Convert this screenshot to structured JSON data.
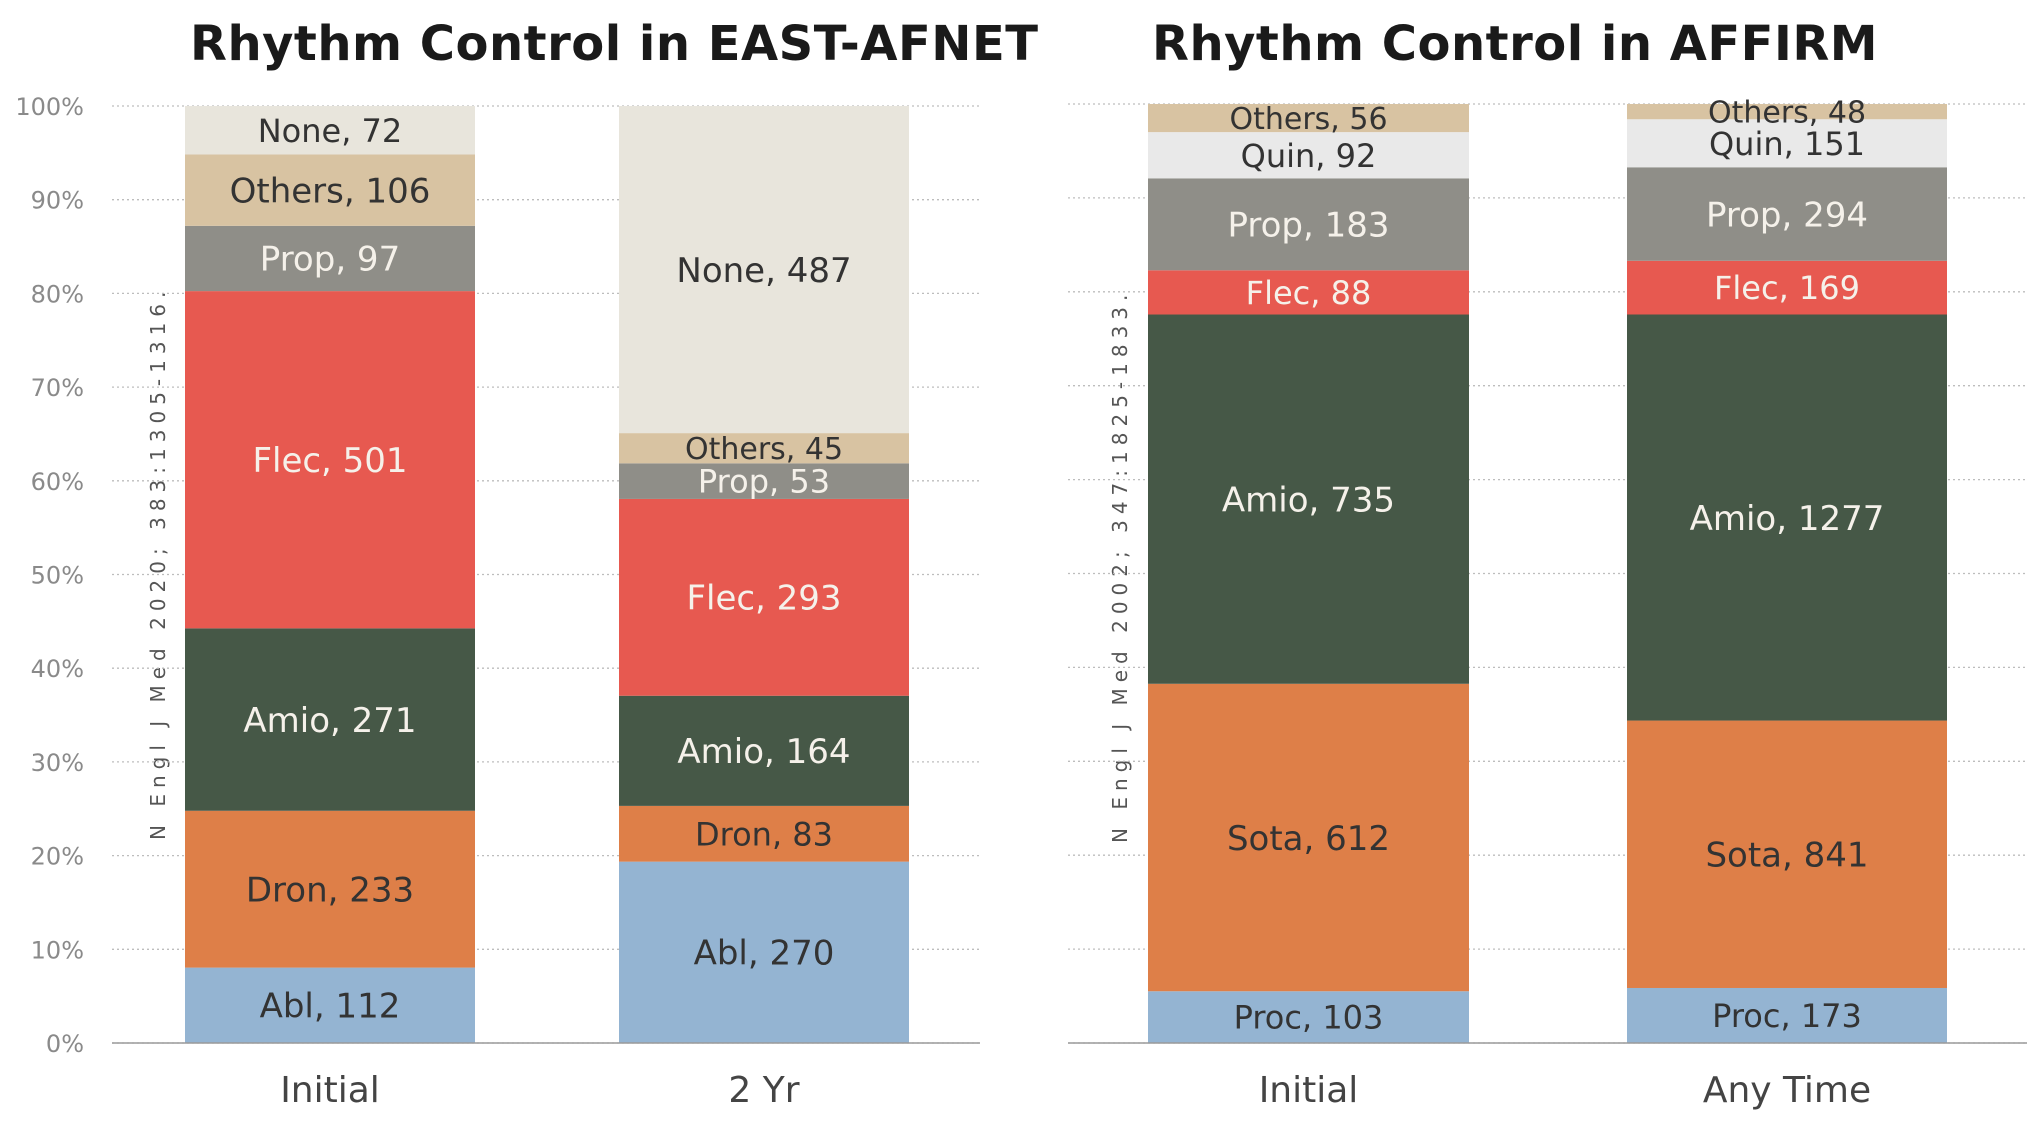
{
  "colors": {
    "Abl": "#94b4d2",
    "Proc": "#94b4d2",
    "Dron": "#de7f48",
    "Sota": "#de7f48",
    "Amio": "#465847",
    "Flec": "#e75950",
    "Prop": "#8f8e88",
    "Quin": "#e9e9e9",
    "Others": "#d8c3a2",
    "None": "#e8e5dc",
    "grid": "#bdbdbd",
    "axis": "#9a9a9a",
    "text_dark": "#333333",
    "text_light": "#f5f1ea"
  },
  "chart_data": [
    {
      "type": "bar",
      "stacked": true,
      "normalized": true,
      "title": "Rhythm Control in EAST-AFNET",
      "citation": "N Engl J Med 2020; 383:1305-1316.",
      "categories": [
        "Initial",
        "2 Yr"
      ],
      "yticks": [
        "0%",
        "10%",
        "20%",
        "30%",
        "40%",
        "50%",
        "60%",
        "70%",
        "80%",
        "90%",
        "100%"
      ],
      "ylim": [
        0,
        100
      ],
      "grid": true,
      "series": [
        {
          "name": "Abl",
          "values": [
            112,
            270
          ]
        },
        {
          "name": "Dron",
          "values": [
            233,
            83
          ]
        },
        {
          "name": "Amio",
          "values": [
            271,
            164
          ]
        },
        {
          "name": "Flec",
          "values": [
            501,
            293
          ]
        },
        {
          "name": "Prop",
          "values": [
            97,
            53
          ]
        },
        {
          "name": "Others",
          "values": [
            106,
            45
          ]
        },
        {
          "name": "None",
          "values": [
            72,
            487
          ]
        }
      ],
      "labels": [
        [
          "Abl, 112",
          "Abl, 270"
        ],
        [
          "Dron, 233",
          "Dron, 83"
        ],
        [
          "Amio, 271",
          "Amio, 164"
        ],
        [
          "Flec, 501",
          "Flec, 293"
        ],
        [
          "Prop, 97",
          "Prop, 53"
        ],
        [
          "Others, 106",
          "Others, 45"
        ],
        [
          "None, 72",
          "None, 487"
        ]
      ]
    },
    {
      "type": "bar",
      "stacked": true,
      "normalized": true,
      "title": "Rhythm Control in AFFIRM",
      "citation": "N Engl J Med 2002; 347:1825-1833.",
      "categories": [
        "Initial",
        "Any Time"
      ],
      "ylim": [
        0,
        100
      ],
      "grid": true,
      "series": [
        {
          "name": "Proc",
          "values": [
            103,
            173
          ]
        },
        {
          "name": "Sota",
          "values": [
            612,
            841
          ]
        },
        {
          "name": "Amio",
          "values": [
            735,
            1277
          ]
        },
        {
          "name": "Flec",
          "values": [
            88,
            169
          ]
        },
        {
          "name": "Prop",
          "values": [
            183,
            294
          ]
        },
        {
          "name": "Quin",
          "values": [
            92,
            151
          ]
        },
        {
          "name": "Others",
          "values": [
            56,
            48
          ]
        }
      ],
      "labels": [
        [
          "Proc, 103",
          "Proc, 173"
        ],
        [
          "Sota, 612",
          "Sota, 841"
        ],
        [
          "Amio, 735",
          "Amio, 1277"
        ],
        [
          "Flec, 88",
          "Flec, 169"
        ],
        [
          "Prop, 183",
          "Prop, 294"
        ],
        [
          "Quin, 92",
          "Quin, 151"
        ],
        [
          "Others, 56",
          "Others, 48"
        ]
      ]
    }
  ]
}
